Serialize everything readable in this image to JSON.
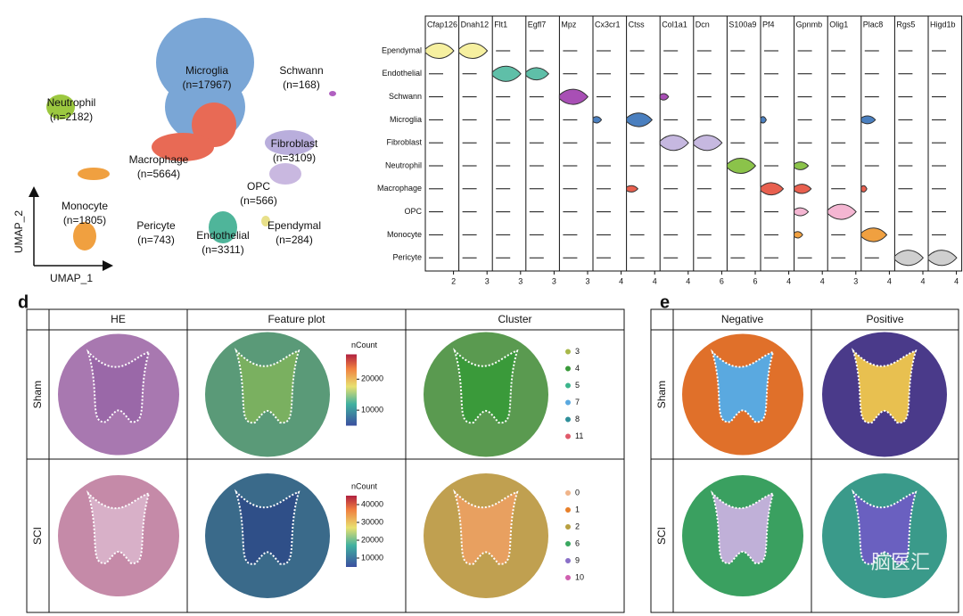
{
  "umap": {
    "axis_x": "UMAP_1",
    "axis_y": "UMAP_2",
    "clusters": [
      {
        "name": "Microglia",
        "n": "(n=17967)"
      },
      {
        "name": "Schwann",
        "n": "(n=168)"
      },
      {
        "name": "Neutrophil",
        "n": "(n=2182)"
      },
      {
        "name": "Fibroblast",
        "n": "(n=3109)"
      },
      {
        "name": "Macrophage",
        "n": "(n=5664)"
      },
      {
        "name": "OPC",
        "n": "(n=566)"
      },
      {
        "name": "Monocyte",
        "n": "(n=1805)"
      },
      {
        "name": "Pericyte",
        "n": "(n=743)"
      },
      {
        "name": "Endothelial",
        "n": "(n=3311)"
      },
      {
        "name": "Ependymal",
        "n": "(n=284)"
      }
    ]
  },
  "violin": {
    "genes": [
      "Cfap126",
      "Dnah12",
      "Flt1",
      "Egfl7",
      "Mpz",
      "Cx3cr1",
      "Ctss",
      "Col1a1",
      "Dcn",
      "S100a9",
      "Pf4",
      "Gpnmb",
      "Olig1",
      "Plac8",
      "Rgs5",
      "Higd1b"
    ],
    "max_ticks": [
      2,
      3,
      3,
      3,
      3,
      4,
      4,
      4,
      6,
      6,
      4,
      4,
      3,
      4,
      4,
      4
    ],
    "cell_types": [
      "Ependymal",
      "Endothelial",
      "Schwann",
      "Microglia",
      "Fibroblast",
      "Neutrophil",
      "Macrophage",
      "OPC",
      "Monocyte",
      "Pericyte"
    ]
  },
  "panel_d": {
    "letter": "d",
    "columns": [
      "HE",
      "Feature plot",
      "Cluster"
    ],
    "rows": [
      "Sham",
      "SCI"
    ],
    "feature_legends": [
      {
        "title": "nCount",
        "ticks": [
          20000,
          10000
        ]
      },
      {
        "title": "nCount",
        "ticks": [
          40000,
          30000,
          20000,
          10000
        ]
      }
    ],
    "cluster_legends": [
      [
        {
          "label": "3",
          "color": "#a8b84a"
        },
        {
          "label": "4",
          "color": "#3a9a3a"
        },
        {
          "label": "5",
          "color": "#3cb58c"
        },
        {
          "label": "7",
          "color": "#5aa9e0"
        },
        {
          "label": "8",
          "color": "#2f8f9a"
        },
        {
          "label": "11",
          "color": "#e05a6a"
        }
      ],
      [
        {
          "label": "0",
          "color": "#f0b48a"
        },
        {
          "label": "1",
          "color": "#e8802a"
        },
        {
          "label": "2",
          "color": "#b8a040"
        },
        {
          "label": "6",
          "color": "#3aa860"
        },
        {
          "label": "9",
          "color": "#8a70c8"
        },
        {
          "label": "10",
          "color": "#d060b0"
        }
      ]
    ]
  },
  "panel_e": {
    "letter": "e",
    "columns": [
      "Negative",
      "Positive"
    ],
    "rows": [
      "Sham",
      "SCI"
    ]
  },
  "watermark": "脑医汇"
}
